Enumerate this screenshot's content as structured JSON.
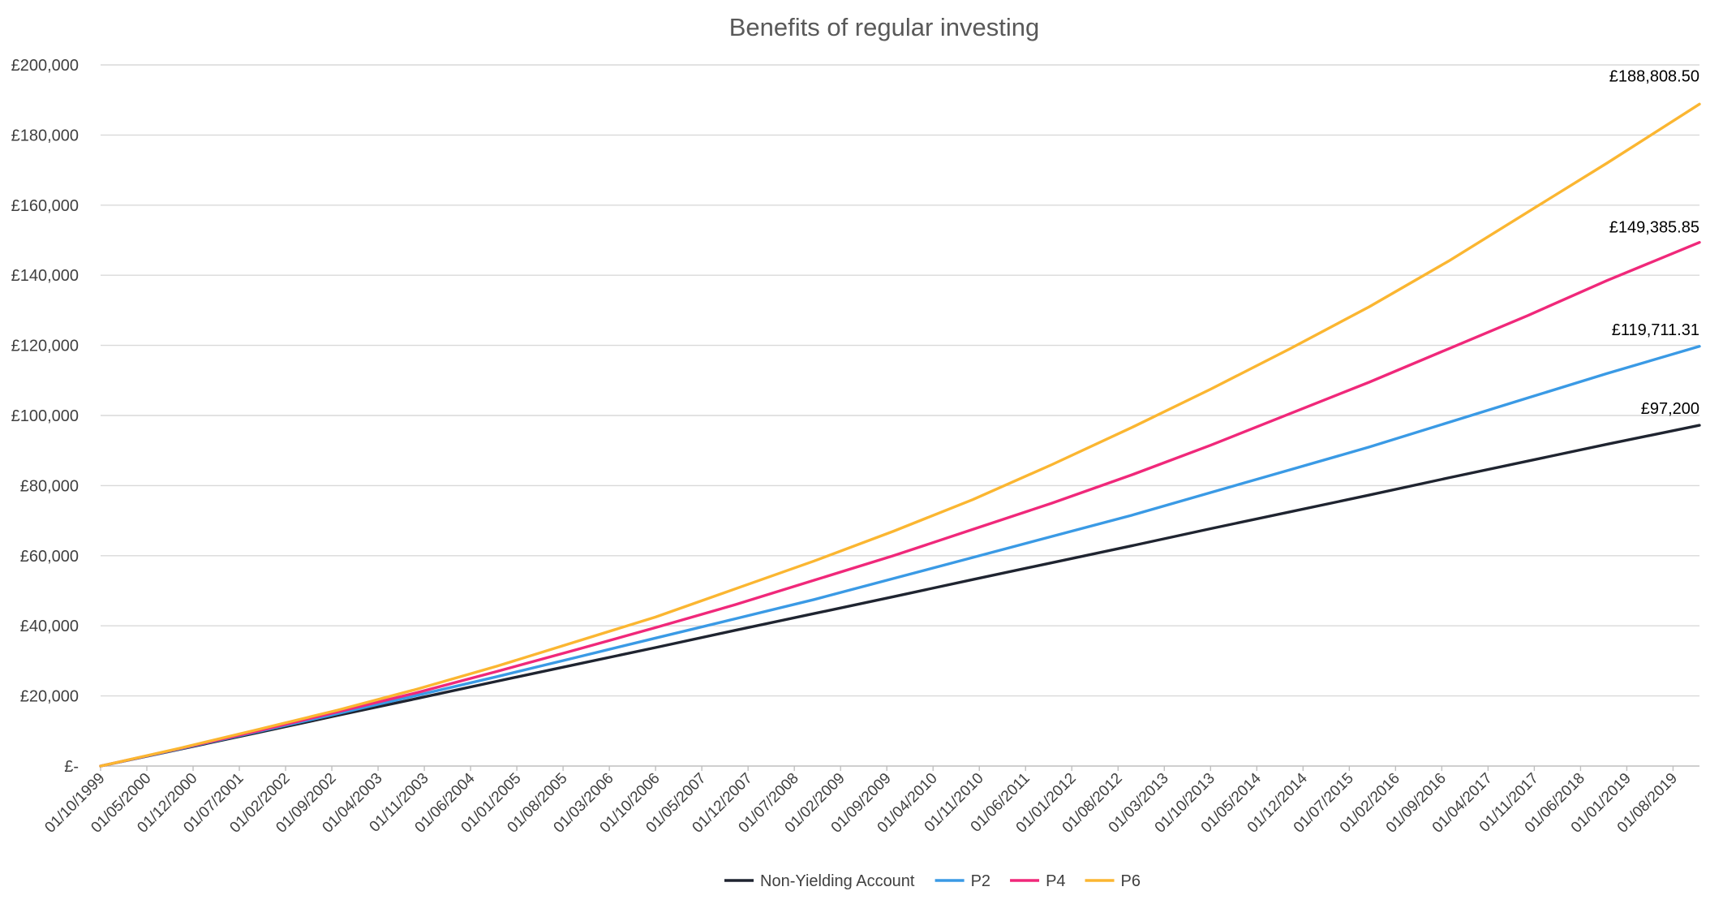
{
  "chart_data": {
    "type": "line",
    "title": "Benefits of regular investing",
    "xlabel": "",
    "ylabel": "",
    "ylim": [
      0,
      200000
    ],
    "y_ticks": [
      {
        "value": 0,
        "label": "£-"
      },
      {
        "value": 20000,
        "label": "£20,000"
      },
      {
        "value": 40000,
        "label": "£40,000"
      },
      {
        "value": 60000,
        "label": "£60,000"
      },
      {
        "value": 80000,
        "label": "£80,000"
      },
      {
        "value": 100000,
        "label": "£100,000"
      },
      {
        "value": 120000,
        "label": "£120,000"
      },
      {
        "value": 140000,
        "label": "£140,000"
      },
      {
        "value": 160000,
        "label": "£160,000"
      },
      {
        "value": 180000,
        "label": "£180,000"
      },
      {
        "value": 200000,
        "label": "£200,000"
      }
    ],
    "x_range": [
      "1999-10",
      "2019-12"
    ],
    "x_tick_labels": [
      "01/10/1999",
      "01/05/2000",
      "01/12/2000",
      "01/07/2001",
      "01/02/2002",
      "01/09/2002",
      "01/04/2003",
      "01/11/2003",
      "01/06/2004",
      "01/01/2005",
      "01/08/2005",
      "01/03/2006",
      "01/10/2006",
      "01/05/2007",
      "01/12/2007",
      "01/07/2008",
      "01/02/2009",
      "01/09/2009",
      "01/04/2010",
      "01/11/2010",
      "01/06/2011",
      "01/01/2012",
      "01/08/2012",
      "01/03/2013",
      "01/10/2013",
      "01/05/2014",
      "01/12/2014",
      "01/07/2015",
      "01/02/2016",
      "01/09/2016",
      "01/04/2017",
      "01/11/2017",
      "01/06/2018",
      "01/01/2019",
      "01/08/2019"
    ],
    "grid": true,
    "legend_position": "bottom",
    "series": [
      {
        "name": "Non-Yielding Account",
        "color": "#1f2430",
        "end_label": "£97,200",
        "points": [
          [
            "1999-10",
            0
          ],
          [
            "2000-10",
            4800
          ],
          [
            "2001-10",
            9600
          ],
          [
            "2002-10",
            14500
          ],
          [
            "2003-10",
            19300
          ],
          [
            "2004-10",
            24200
          ],
          [
            "2005-10",
            29000
          ],
          [
            "2006-10",
            33800
          ],
          [
            "2007-10",
            38700
          ],
          [
            "2008-10",
            43500
          ],
          [
            "2009-10",
            48300
          ],
          [
            "2010-10",
            53200
          ],
          [
            "2011-10",
            58000
          ],
          [
            "2012-10",
            62800
          ],
          [
            "2013-10",
            67700
          ],
          [
            "2014-10",
            72500
          ],
          [
            "2015-10",
            77300
          ],
          [
            "2016-10",
            82200
          ],
          [
            "2017-10",
            87000
          ],
          [
            "2018-10",
            91800
          ],
          [
            "2019-12",
            97200
          ]
        ]
      },
      {
        "name": "P2",
        "color": "#3a9ae5",
        "end_label": "£119,711.31",
        "points": [
          [
            "1999-10",
            0
          ],
          [
            "2000-10",
            4900
          ],
          [
            "2001-10",
            9900
          ],
          [
            "2002-10",
            15000
          ],
          [
            "2003-10",
            20200
          ],
          [
            "2004-10",
            25500
          ],
          [
            "2005-10",
            31000
          ],
          [
            "2006-10",
            36500
          ],
          [
            "2007-10",
            42000
          ],
          [
            "2008-10",
            47500
          ],
          [
            "2009-10",
            53500
          ],
          [
            "2010-10",
            59500
          ],
          [
            "2011-10",
            65500
          ],
          [
            "2012-10",
            71500
          ],
          [
            "2013-10",
            78000
          ],
          [
            "2014-10",
            84500
          ],
          [
            "2015-10",
            91000
          ],
          [
            "2016-10",
            98000
          ],
          [
            "2017-10",
            105000
          ],
          [
            "2018-10",
            112000
          ],
          [
            "2019-12",
            119711.31
          ]
        ]
      },
      {
        "name": "P4",
        "color": "#f0287a",
        "end_label": "£149,385.85",
        "points": [
          [
            "1999-10",
            0
          ],
          [
            "2000-10",
            5000
          ],
          [
            "2001-10",
            10100
          ],
          [
            "2002-10",
            15500
          ],
          [
            "2003-10",
            21000
          ],
          [
            "2004-10",
            27000
          ],
          [
            "2005-10",
            33200
          ],
          [
            "2006-10",
            39500
          ],
          [
            "2007-10",
            46000
          ],
          [
            "2008-10",
            53000
          ],
          [
            "2009-10",
            60000
          ],
          [
            "2010-10",
            67500
          ],
          [
            "2011-10",
            75000
          ],
          [
            "2012-10",
            83000
          ],
          [
            "2013-10",
            91500
          ],
          [
            "2014-10",
            100500
          ],
          [
            "2015-10",
            109500
          ],
          [
            "2016-10",
            119000
          ],
          [
            "2017-10",
            128500
          ],
          [
            "2018-10",
            138500
          ],
          [
            "2019-12",
            149385.85
          ]
        ]
      },
      {
        "name": "P6",
        "color": "#fbb631",
        "end_label": "£188,808.50",
        "points": [
          [
            "1999-10",
            0
          ],
          [
            "2000-10",
            5100
          ],
          [
            "2001-10",
            10500
          ],
          [
            "2002-10",
            16000
          ],
          [
            "2003-10",
            22000
          ],
          [
            "2004-10",
            28500
          ],
          [
            "2005-10",
            35500
          ],
          [
            "2006-10",
            42500
          ],
          [
            "2007-10",
            50500
          ],
          [
            "2008-10",
            58500
          ],
          [
            "2009-10",
            67000
          ],
          [
            "2010-10",
            76000
          ],
          [
            "2011-10",
            86000
          ],
          [
            "2012-10",
            96500
          ],
          [
            "2013-10",
            107500
          ],
          [
            "2014-10",
            119000
          ],
          [
            "2015-10",
            131000
          ],
          [
            "2016-10",
            144000
          ],
          [
            "2017-10",
            158000
          ],
          [
            "2018-10",
            172000
          ],
          [
            "2019-12",
            188808.5
          ]
        ]
      }
    ]
  }
}
